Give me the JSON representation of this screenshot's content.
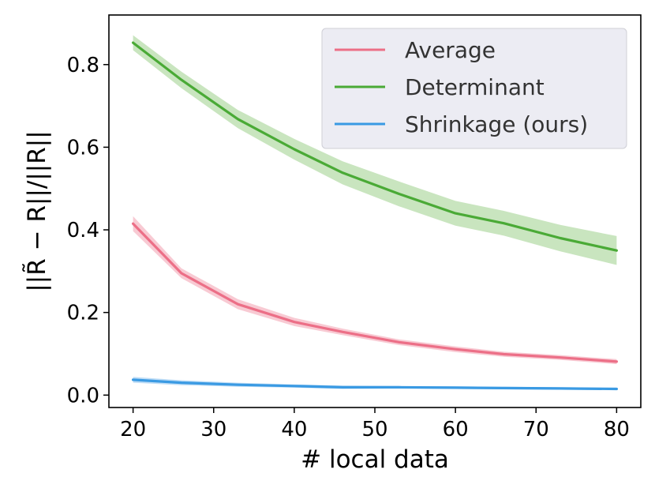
{
  "chart_data": {
    "type": "line",
    "title": "",
    "xlabel": "# local data",
    "ylabel": "||R̃ − R||/||R||",
    "xlim": [
      17,
      83
    ],
    "ylim": [
      -0.03,
      0.92
    ],
    "xticks": [
      20,
      30,
      40,
      50,
      60,
      70,
      80
    ],
    "yticks": [
      0.0,
      0.2,
      0.4,
      0.6,
      0.8
    ],
    "ytick_labels": [
      "0.0",
      "0.2",
      "0.4",
      "0.6",
      "0.8"
    ],
    "grid": false,
    "legend_position": "top-right",
    "x": [
      20,
      26,
      33,
      40,
      46,
      53,
      60,
      66,
      73,
      80
    ],
    "series": [
      {
        "name": "Average",
        "color": "#ec6f87",
        "band_color": "#f5b8c4",
        "values": [
          0.415,
          0.295,
          0.22,
          0.177,
          0.153,
          0.128,
          0.111,
          0.099,
          0.091,
          0.081
        ],
        "band_halfwidth": [
          0.018,
          0.012,
          0.012,
          0.01,
          0.008,
          0.007,
          0.007,
          0.006,
          0.006,
          0.006
        ]
      },
      {
        "name": "Determinant",
        "color": "#4aaa36",
        "band_color": "#b7dcaa",
        "values": [
          0.853,
          0.763,
          0.668,
          0.595,
          0.538,
          0.487,
          0.44,
          0.416,
          0.38,
          0.35
        ],
        "band_halfwidth": [
          0.018,
          0.02,
          0.022,
          0.025,
          0.028,
          0.03,
          0.03,
          0.03,
          0.032,
          0.035
        ]
      },
      {
        "name": "Shrinkage (ours)",
        "color": "#3a9ae3",
        "band_color": "#a9d2f3",
        "values": [
          0.037,
          0.03,
          0.025,
          0.022,
          0.019,
          0.019,
          0.018,
          0.017,
          0.016,
          0.015
        ],
        "band_halfwidth": [
          0.007,
          0.006,
          0.005,
          0.004,
          0.004,
          0.003,
          0.003,
          0.003,
          0.003,
          0.003
        ]
      }
    ]
  }
}
